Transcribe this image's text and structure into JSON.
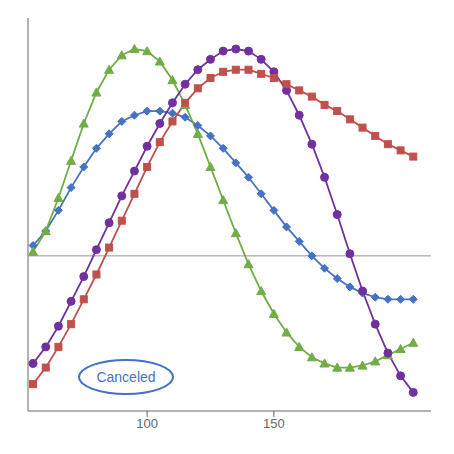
{
  "chart_data": {
    "type": "line",
    "x": [
      55,
      60,
      65,
      70,
      75,
      80,
      85,
      90,
      95,
      100,
      105,
      110,
      115,
      120,
      125,
      130,
      135,
      140,
      145,
      150,
      155,
      160,
      165,
      170,
      175,
      180,
      185,
      190,
      195,
      200,
      205
    ],
    "series": [
      {
        "color": "#4472c4",
        "marker": "diamond",
        "line_style": "solid",
        "values": [
          0.05,
          0.12,
          0.22,
          0.33,
          0.43,
          0.52,
          0.59,
          0.65,
          0.68,
          0.7,
          0.7,
          0.69,
          0.67,
          0.63,
          0.58,
          0.52,
          0.45,
          0.38,
          0.3,
          0.22,
          0.14,
          0.07,
          0.0,
          -0.06,
          -0.11,
          -0.15,
          -0.18,
          -0.2,
          -0.21,
          -0.21,
          -0.21
        ]
      },
      {
        "color": "#70ad47",
        "marker": "triangle",
        "line_style": "solid",
        "values": [
          0.02,
          0.12,
          0.28,
          0.46,
          0.64,
          0.79,
          0.9,
          0.97,
          1.0,
          0.99,
          0.94,
          0.85,
          0.73,
          0.59,
          0.43,
          0.27,
          0.11,
          -0.04,
          -0.17,
          -0.28,
          -0.37,
          -0.44,
          -0.49,
          -0.52,
          -0.54,
          -0.54,
          -0.53,
          -0.51,
          -0.48,
          -0.45,
          -0.42
        ]
      },
      {
        "color": "#7030a0",
        "marker": "circle",
        "line_style": "solid",
        "values": [
          -0.52,
          -0.44,
          -0.34,
          -0.22,
          -0.1,
          0.03,
          0.16,
          0.29,
          0.41,
          0.53,
          0.64,
          0.74,
          0.83,
          0.9,
          0.95,
          0.99,
          1.0,
          0.99,
          0.95,
          0.89,
          0.8,
          0.68,
          0.54,
          0.38,
          0.2,
          0.01,
          -0.17,
          -0.33,
          -0.47,
          -0.58,
          -0.66
        ]
      },
      {
        "color": "#c0504d",
        "marker": "square",
        "line_style": "solid",
        "values": [
          -0.62,
          -0.54,
          -0.44,
          -0.33,
          -0.21,
          -0.09,
          0.04,
          0.17,
          0.3,
          0.43,
          0.55,
          0.65,
          0.74,
          0.81,
          0.86,
          0.89,
          0.9,
          0.9,
          0.88,
          0.86,
          0.83,
          0.8,
          0.77,
          0.73,
          0.7,
          0.66,
          0.62,
          0.58,
          0.54,
          0.51,
          0.48
        ]
      }
    ],
    "xlim": [
      53,
      212
    ],
    "xticks": [
      100,
      150
    ],
    "ylim": [
      -0.75,
      1.15
    ],
    "tick_labels": "x",
    "grid": false,
    "annotations": [
      {
        "text": "Canceled",
        "color": "#4472c4"
      }
    ]
  }
}
